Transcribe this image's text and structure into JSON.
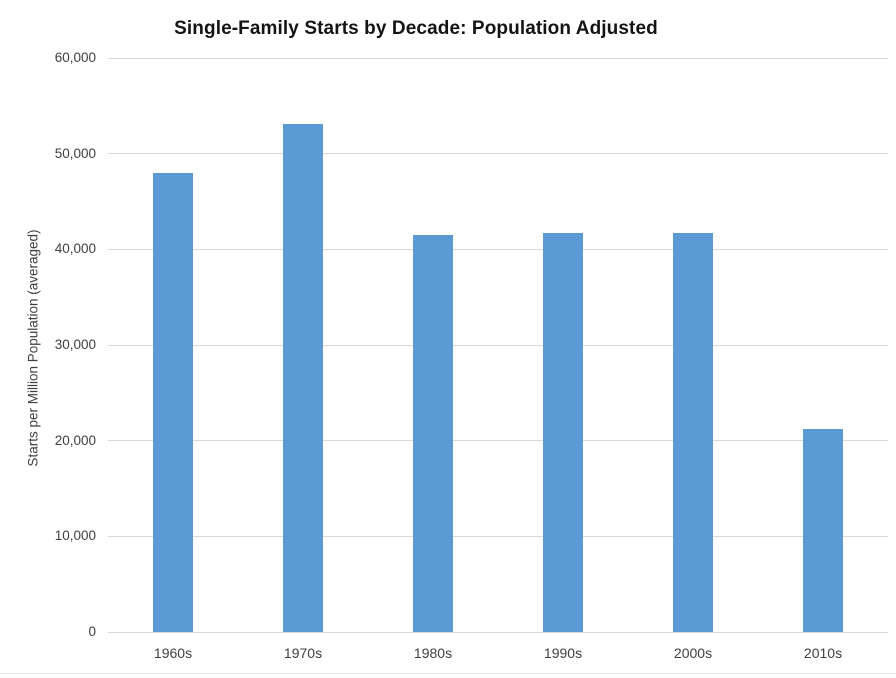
{
  "page": {
    "background": "#ffffff"
  },
  "chart_data": {
    "type": "bar",
    "title": "Single-Family Starts by Decade: Population Adjusted",
    "xlabel": "",
    "ylabel": "Starts per Million Population (averaged)",
    "categories": [
      "1960s",
      "1970s",
      "1980s",
      "1990s",
      "2000s",
      "2010s"
    ],
    "values": [
      48000,
      53100,
      41500,
      41700,
      41700,
      21200
    ],
    "ylim": [
      0,
      60000
    ],
    "ytick_step": 10000,
    "ytick_labels": [
      "0",
      "10,000",
      "20,000",
      "30,000",
      "40,000",
      "50,000",
      "60,000"
    ],
    "grid": true,
    "legend": false,
    "bar_color": "#5b9bd5",
    "gridline_color": "#d9d9d9",
    "axis_text_color": "#404040",
    "title_color": "#141414"
  }
}
